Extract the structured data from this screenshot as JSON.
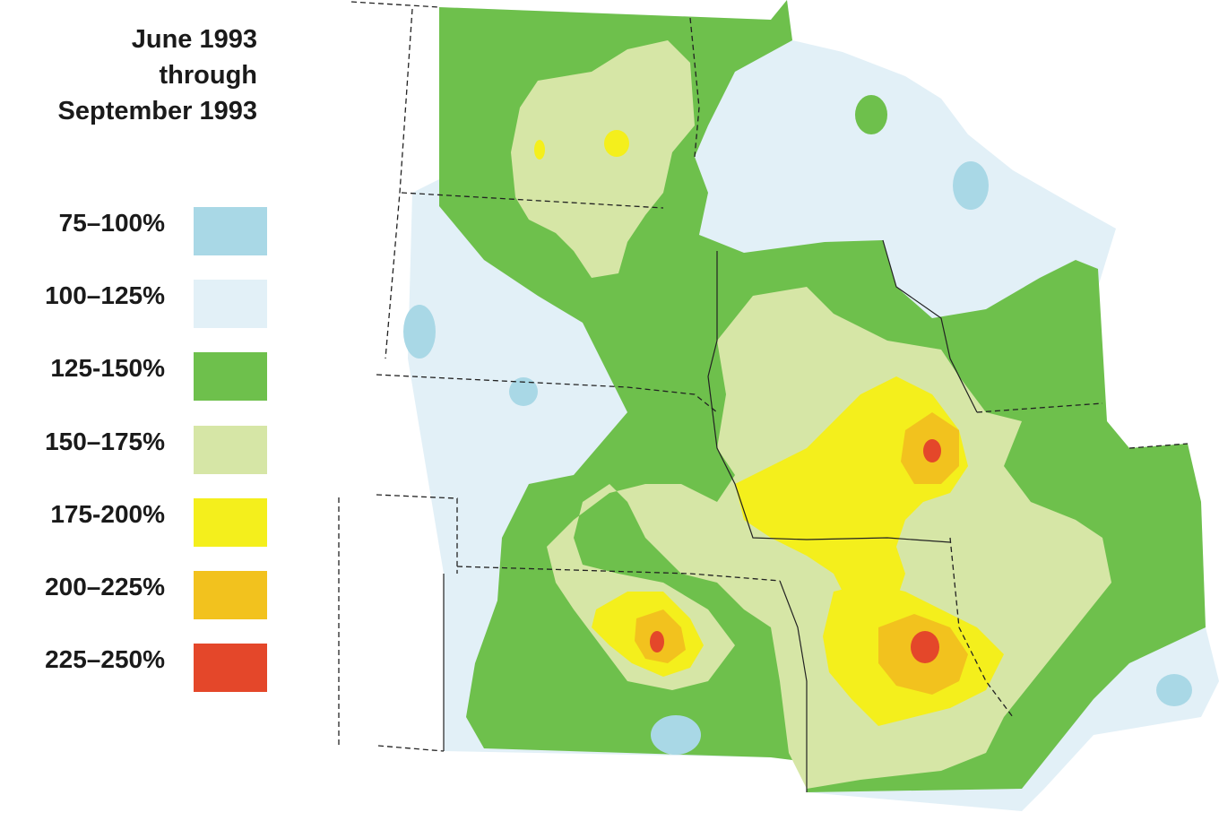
{
  "title": {
    "line1": "June 1993",
    "line2": "through",
    "line3": "September 1993"
  },
  "legend": [
    {
      "label": "75–100%",
      "color": "#a9d8e6"
    },
    {
      "label": "100–125%",
      "color": "#e2f0f7"
    },
    {
      "label": "125-150%",
      "color": "#6ec04c"
    },
    {
      "label": "150–175%",
      "color": "#d6e6a6"
    },
    {
      "label": "175-200%",
      "color": "#f4ef1c"
    },
    {
      "label": "200–225%",
      "color": "#f2c21e"
    },
    {
      "label": "225–250%",
      "color": "#e4472a"
    }
  ]
}
